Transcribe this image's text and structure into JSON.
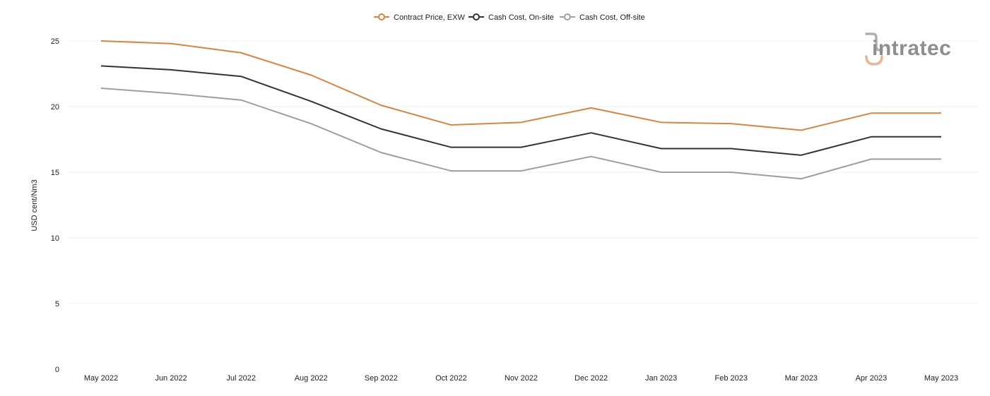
{
  "chart_data": {
    "type": "line",
    "title": "",
    "xlabel": "",
    "ylabel": "USD cent/Nm3",
    "ylim": [
      0,
      25
    ],
    "yticks": [
      0,
      5,
      10,
      15,
      20,
      25
    ],
    "grid": true,
    "legend_position": "top-center",
    "categories": [
      "May 2022",
      "Jun 2022",
      "Jul 2022",
      "Aug 2022",
      "Sep 2022",
      "Oct 2022",
      "Nov 2022",
      "Dec 2022",
      "Jan 2023",
      "Feb 2023",
      "Mar 2023",
      "Apr 2023",
      "May 2023"
    ],
    "series": [
      {
        "name": "Contract Price, EXW",
        "color": "#d9843e",
        "values": [
          25.0,
          24.8,
          24.1,
          22.4,
          20.1,
          18.6,
          18.8,
          19.9,
          18.8,
          18.7,
          18.2,
          19.5,
          19.5
        ]
      },
      {
        "name": "Cash Cost, On-site",
        "color": "#333333",
        "values": [
          23.1,
          22.8,
          22.3,
          20.4,
          18.3,
          16.9,
          16.9,
          18.0,
          16.8,
          16.8,
          16.3,
          17.7,
          17.7
        ]
      },
      {
        "name": "Cash Cost, Off-site",
        "color": "#9e9e9e",
        "values": [
          21.4,
          21.0,
          20.5,
          18.7,
          16.5,
          15.1,
          15.1,
          16.2,
          15.0,
          15.0,
          14.5,
          16.0,
          16.0
        ]
      }
    ]
  },
  "logo": {
    "text": "intratec",
    "color": "#8e8e8e",
    "accent_color": "#e2b894"
  }
}
